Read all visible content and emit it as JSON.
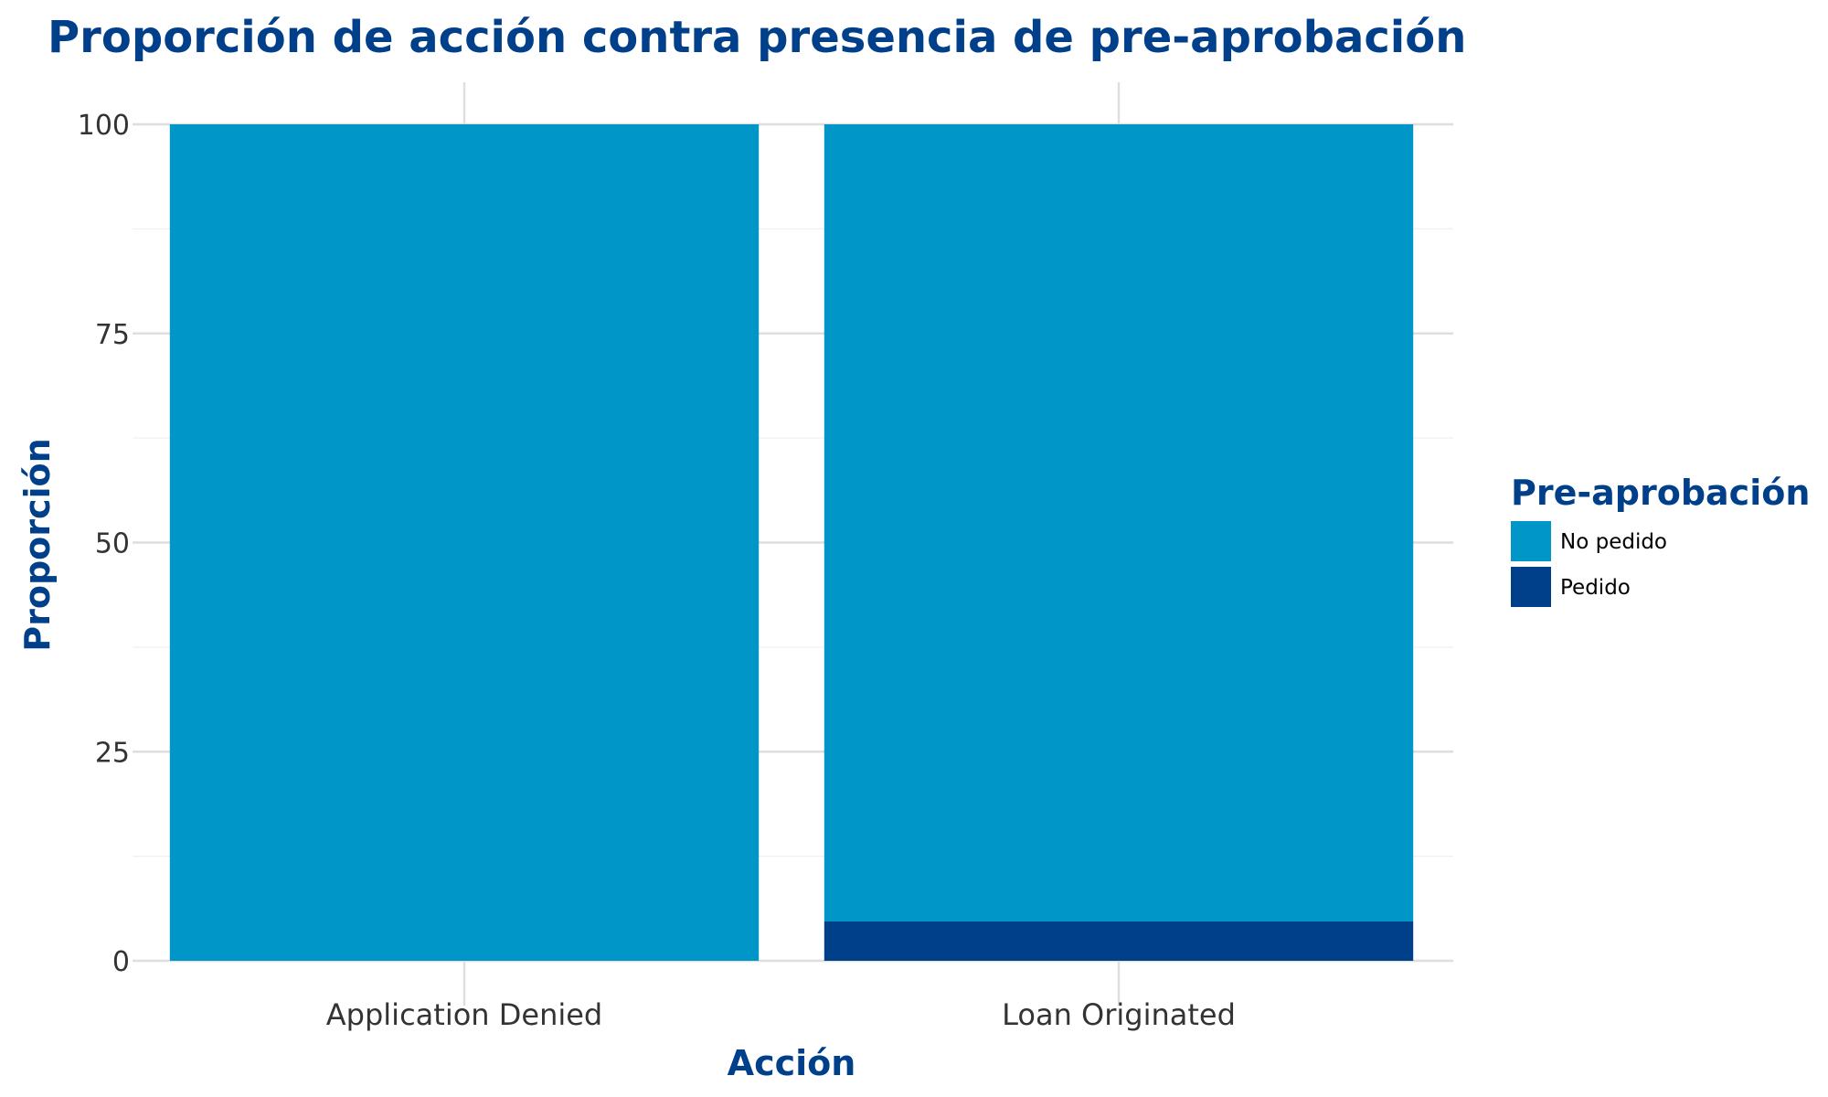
{
  "chart_data": {
    "type": "bar",
    "stacked": true,
    "title": "Proporción de acción contra presencia de pre-aprobación",
    "xlabel": "Acción",
    "ylabel": "Proporción",
    "categories": [
      "Application Denied",
      "Loan Originated"
    ],
    "series": [
      {
        "name": "No pedido",
        "values": [
          100,
          95.3
        ],
        "color": "#0096c8"
      },
      {
        "name": "Pedido",
        "values": [
          0,
          4.7
        ],
        "color": "#003f8a"
      }
    ],
    "ylim": [
      0,
      100
    ],
    "yticks": [
      0,
      25,
      50,
      75,
      100
    ],
    "grid": true,
    "legend": {
      "title": "Pre-aprobación",
      "position": "right"
    }
  }
}
